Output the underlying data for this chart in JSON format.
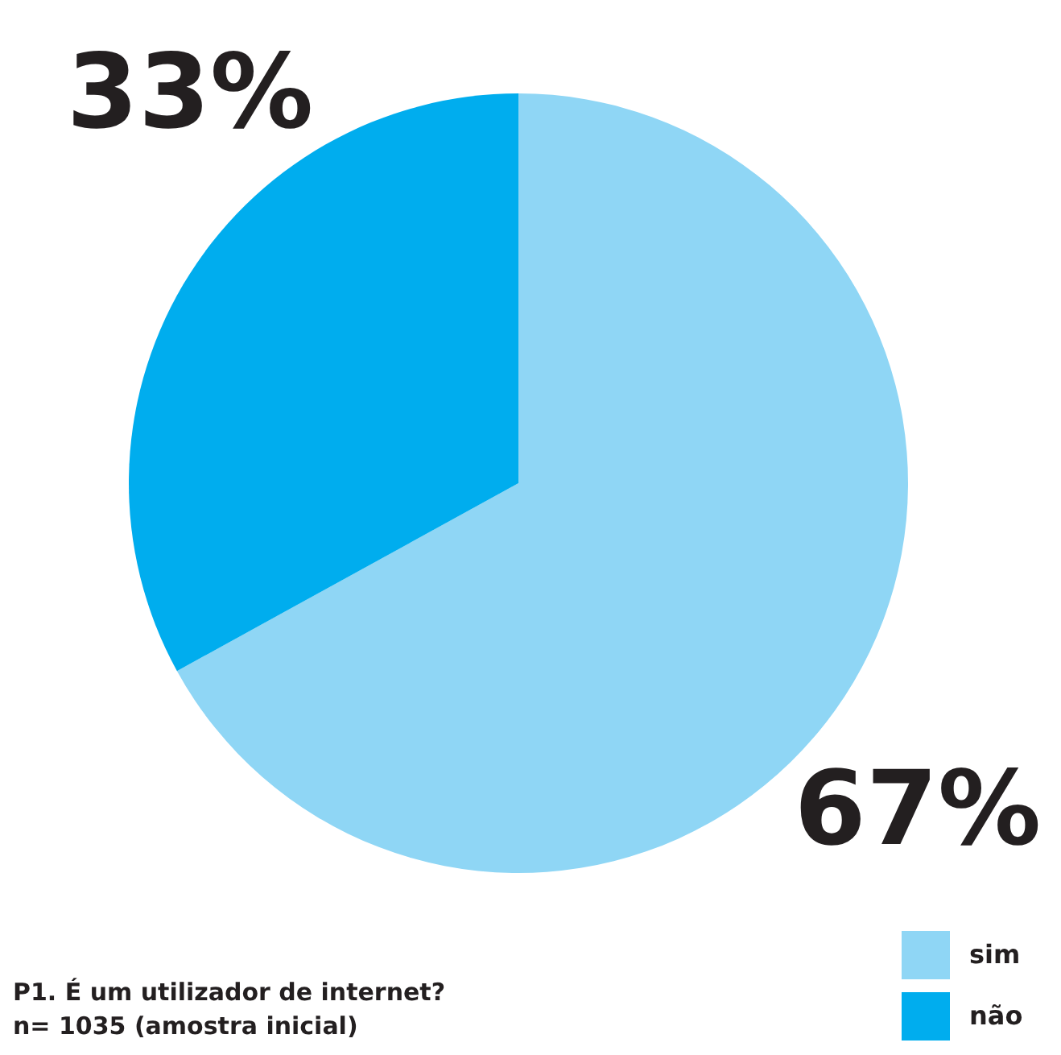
{
  "chart_data": {
    "type": "pie",
    "categories": [
      "sim",
      "não"
    ],
    "values": [
      67,
      33
    ],
    "colors": [
      "#8fd6f5",
      "#00adee"
    ],
    "data_labels": true,
    "value_labels": [
      "67%",
      "33%"
    ],
    "legend": "bottom right",
    "annotations": [
      "P1. É um utilizador de internet?",
      "n= 1035 (amostra inicial)"
    ]
  }
}
